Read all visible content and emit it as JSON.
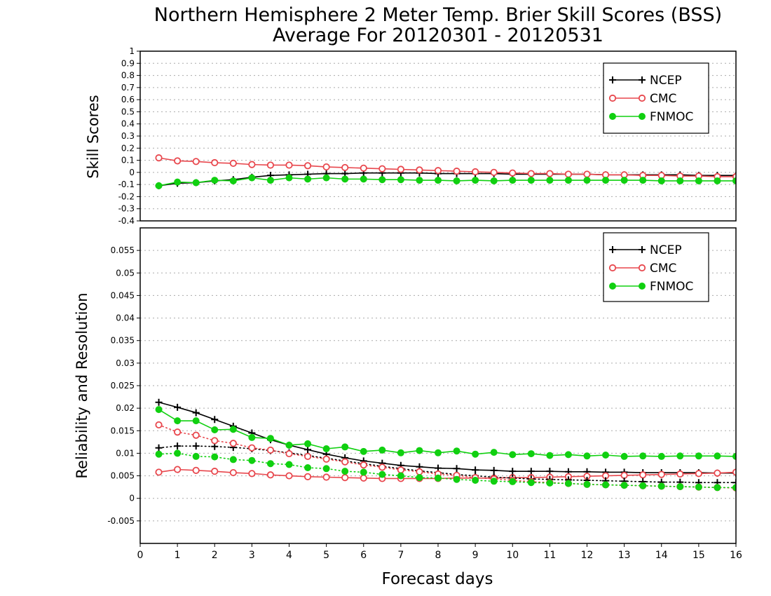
{
  "title": "Northern Hemisphere 2 Meter Temp. Brier Skill Scores (BSS)",
  "subtitle": "Average For 20120301 - 20120531",
  "colors": {
    "NCEP": "#000000",
    "CMC": "#e8474d",
    "FNMOC": "#10d010",
    "grid": "#aaaaaa"
  },
  "chart_data": [
    {
      "type": "line",
      "ylabel": "Skill Scores",
      "xlim": [
        0,
        16
      ],
      "ylim": [
        -0.4,
        1
      ],
      "yticks": [
        "-0.4",
        "-0.3",
        "-0.2",
        "-0.1",
        "0",
        "0.1",
        "0.2",
        "0.3",
        "0.4",
        "0.5",
        "0.6",
        "0.7",
        "0.8",
        "0.9",
        "1"
      ],
      "grid": true,
      "legend": "top-right",
      "x": [
        0.5,
        1,
        1.5,
        2,
        2.5,
        3,
        3.5,
        4,
        4.5,
        5,
        5.5,
        6,
        6.5,
        7,
        7.5,
        8,
        8.5,
        9,
        9.5,
        10,
        10.5,
        11,
        11.5,
        12,
        12.5,
        13,
        13.5,
        14,
        14.5,
        15,
        15.5,
        16
      ],
      "series": [
        {
          "name": "NCEP",
          "style": "solid",
          "marker": "plus",
          "values": [
            -0.11,
            -0.09,
            -0.085,
            -0.07,
            -0.06,
            -0.04,
            -0.025,
            -0.02,
            -0.015,
            -0.01,
            -0.01,
            -0.005,
            -0.005,
            -0.005,
            -0.005,
            -0.01,
            -0.01,
            -0.01,
            -0.01,
            -0.015,
            -0.015,
            -0.015,
            -0.015,
            -0.015,
            -0.02,
            -0.02,
            -0.02,
            -0.02,
            -0.02,
            -0.025,
            -0.025,
            -0.025
          ]
        },
        {
          "name": "CMC",
          "style": "solid",
          "marker": "open-circle",
          "values": [
            0.12,
            0.095,
            0.09,
            0.08,
            0.075,
            0.065,
            0.06,
            0.06,
            0.055,
            0.045,
            0.04,
            0.035,
            0.03,
            0.025,
            0.02,
            0.015,
            0.01,
            0.005,
            0,
            -0.005,
            -0.01,
            -0.01,
            -0.015,
            -0.015,
            -0.02,
            -0.02,
            -0.025,
            -0.025,
            -0.03,
            -0.03,
            -0.035,
            -0.035
          ]
        },
        {
          "name": "FNMOC",
          "style": "solid",
          "marker": "filled-circle",
          "values": [
            -0.11,
            -0.08,
            -0.085,
            -0.065,
            -0.07,
            -0.045,
            -0.065,
            -0.045,
            -0.055,
            -0.045,
            -0.055,
            -0.055,
            -0.06,
            -0.06,
            -0.065,
            -0.065,
            -0.07,
            -0.065,
            -0.07,
            -0.065,
            -0.065,
            -0.065,
            -0.065,
            -0.065,
            -0.065,
            -0.065,
            -0.065,
            -0.07,
            -0.07,
            -0.07,
            -0.07,
            -0.07
          ]
        }
      ]
    },
    {
      "type": "line",
      "ylabel": "Reliability and Resolution",
      "xlabel": "Forecast days",
      "xlim": [
        0,
        16
      ],
      "ylim": [
        -0.01,
        0.06
      ],
      "xticks": [
        "0",
        "1",
        "2",
        "3",
        "4",
        "5",
        "6",
        "7",
        "8",
        "9",
        "10",
        "11",
        "12",
        "13",
        "14",
        "15",
        "16"
      ],
      "yticks": [
        "-0.005",
        "0",
        "0.005",
        "0.01",
        "0.015",
        "0.02",
        "0.025",
        "0.03",
        "0.035",
        "0.04",
        "0.045",
        "0.05",
        "0.055"
      ],
      "grid": true,
      "legend": "top-right",
      "x": [
        0.5,
        1,
        1.5,
        2,
        2.5,
        3,
        3.5,
        4,
        4.5,
        5,
        5.5,
        6,
        6.5,
        7,
        7.5,
        8,
        8.5,
        9,
        9.5,
        10,
        10.5,
        11,
        11.5,
        12,
        12.5,
        13,
        13.5,
        14,
        14.5,
        15,
        15.5,
        16
      ],
      "series": [
        {
          "name": "NCEP",
          "style": "solid",
          "marker": "plus",
          "values": [
            0.0213,
            0.0202,
            0.019,
            0.0175,
            0.016,
            0.0145,
            0.013,
            0.0118,
            0.0108,
            0.0098,
            0.009,
            0.0083,
            0.0078,
            0.0073,
            0.007,
            0.0067,
            0.0066,
            0.0063,
            0.0062,
            0.006,
            0.006,
            0.006,
            0.0059,
            0.0059,
            0.0058,
            0.0058,
            0.0057,
            0.0057,
            0.0057,
            0.0057,
            0.0056,
            0.0056
          ]
        },
        {
          "name": "CMC",
          "style": "solid",
          "marker": "open-circle",
          "values": [
            0.0058,
            0.0064,
            0.0062,
            0.006,
            0.0057,
            0.0055,
            0.0052,
            0.005,
            0.0048,
            0.0047,
            0.0046,
            0.0045,
            0.0044,
            0.0044,
            0.0044,
            0.0044,
            0.0045,
            0.0045,
            0.0045,
            0.0046,
            0.0046,
            0.0047,
            0.0048,
            0.0049,
            0.005,
            0.0051,
            0.0052,
            0.0053,
            0.0054,
            0.0055,
            0.0056,
            0.0058
          ]
        },
        {
          "name": "FNMOC",
          "style": "solid",
          "marker": "filled-circle",
          "values": [
            0.0197,
            0.0172,
            0.0172,
            0.0152,
            0.0153,
            0.0135,
            0.0133,
            0.0118,
            0.0121,
            0.011,
            0.0114,
            0.0104,
            0.0107,
            0.0101,
            0.0106,
            0.0101,
            0.0105,
            0.0098,
            0.0102,
            0.0097,
            0.0099,
            0.0095,
            0.0097,
            0.0094,
            0.0096,
            0.0093,
            0.0094,
            0.0093,
            0.0094,
            0.0094,
            0.0094,
            0.0093
          ]
        },
        {
          "name": "NCEP",
          "style": "dotted",
          "marker": "plus",
          "values": [
            0.0112,
            0.0116,
            0.0116,
            0.0115,
            0.0113,
            0.011,
            0.0106,
            0.0101,
            0.0095,
            0.0089,
            0.0083,
            0.0077,
            0.0071,
            0.0066,
            0.0061,
            0.0057,
            0.0053,
            0.005,
            0.0047,
            0.0045,
            0.0043,
            0.0042,
            0.0041,
            0.004,
            0.0039,
            0.0038,
            0.0037,
            0.0036,
            0.0036,
            0.0035,
            0.0035,
            0.0035
          ]
        },
        {
          "name": "CMC",
          "style": "dotted",
          "marker": "open-circle",
          "values": [
            0.0163,
            0.0147,
            0.014,
            0.0128,
            0.0122,
            0.0112,
            0.0107,
            0.0099,
            0.0093,
            0.0087,
            0.0081,
            0.0074,
            0.0069,
            0.0063,
            0.0059,
            0.0054,
            0.0051,
            0.0046,
            0.0043,
            0.004,
            0.0037,
            0.0035,
            0.0033,
            0.0031,
            0.003,
            0.0029,
            0.0028,
            0.0027,
            0.0026,
            0.0025,
            0.0024,
            0.0023
          ]
        },
        {
          "name": "FNMOC",
          "style": "dotted",
          "marker": "filled-circle",
          "values": [
            0.0098,
            0.01,
            0.0093,
            0.0092,
            0.0086,
            0.0084,
            0.0077,
            0.0075,
            0.0068,
            0.0066,
            0.006,
            0.0058,
            0.0053,
            0.005,
            0.0046,
            0.0045,
            0.0042,
            0.004,
            0.0038,
            0.0037,
            0.0035,
            0.0034,
            0.0033,
            0.0031,
            0.003,
            0.0029,
            0.0028,
            0.0027,
            0.0026,
            0.0025,
            0.0024,
            0.0024
          ]
        }
      ]
    }
  ]
}
